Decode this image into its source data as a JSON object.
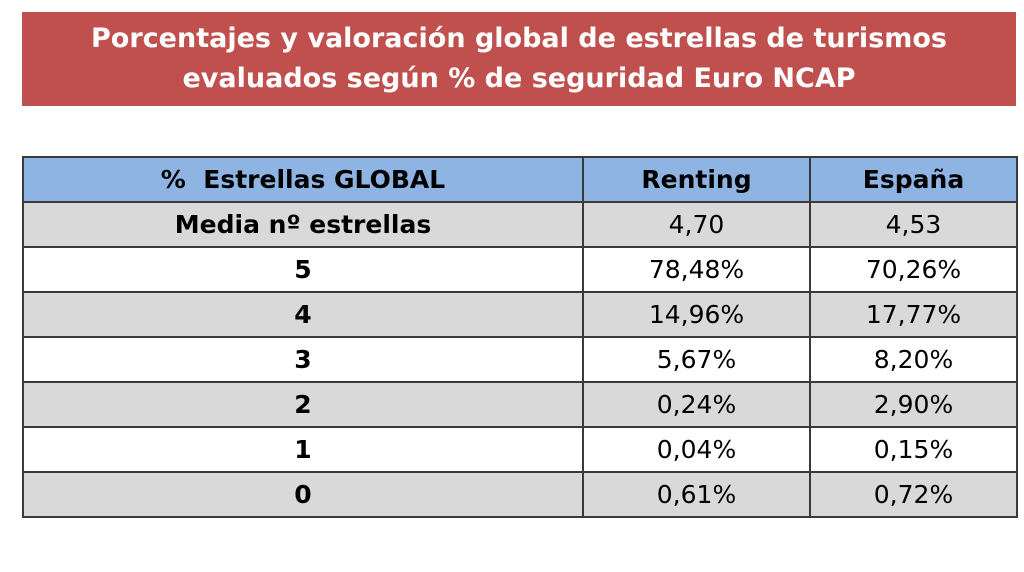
{
  "title": {
    "line1": "Porcentajes y valoración global de estrellas de turismos",
    "line2": "evaluados según % de seguridad Euro NCAP"
  },
  "colors": {
    "title_background": "#c0504d",
    "header_background": "#8db4e2",
    "shaded_row": "#d9d9d9"
  },
  "chart_data": {
    "type": "table",
    "title": "Porcentajes y valoración global de estrellas de turismos evaluados según % de seguridad Euro NCAP",
    "columns": [
      "%  Estrellas GLOBAL",
      "Renting",
      "España"
    ],
    "rows": [
      {
        "label": "Media nº estrellas",
        "renting": "4,70",
        "espana": "4,53"
      },
      {
        "label": "5",
        "renting": "78,48%",
        "espana": "70,26%"
      },
      {
        "label": "4",
        "renting": "14,96%",
        "espana": "17,77%"
      },
      {
        "label": "3",
        "renting": "5,67%",
        "espana": "8,20%"
      },
      {
        "label": "2",
        "renting": "0,24%",
        "espana": "2,90%"
      },
      {
        "label": "1",
        "renting": "0,04%",
        "espana": "0,15%"
      },
      {
        "label": "0",
        "renting": "0,61%",
        "espana": "0,72%"
      }
    ]
  }
}
